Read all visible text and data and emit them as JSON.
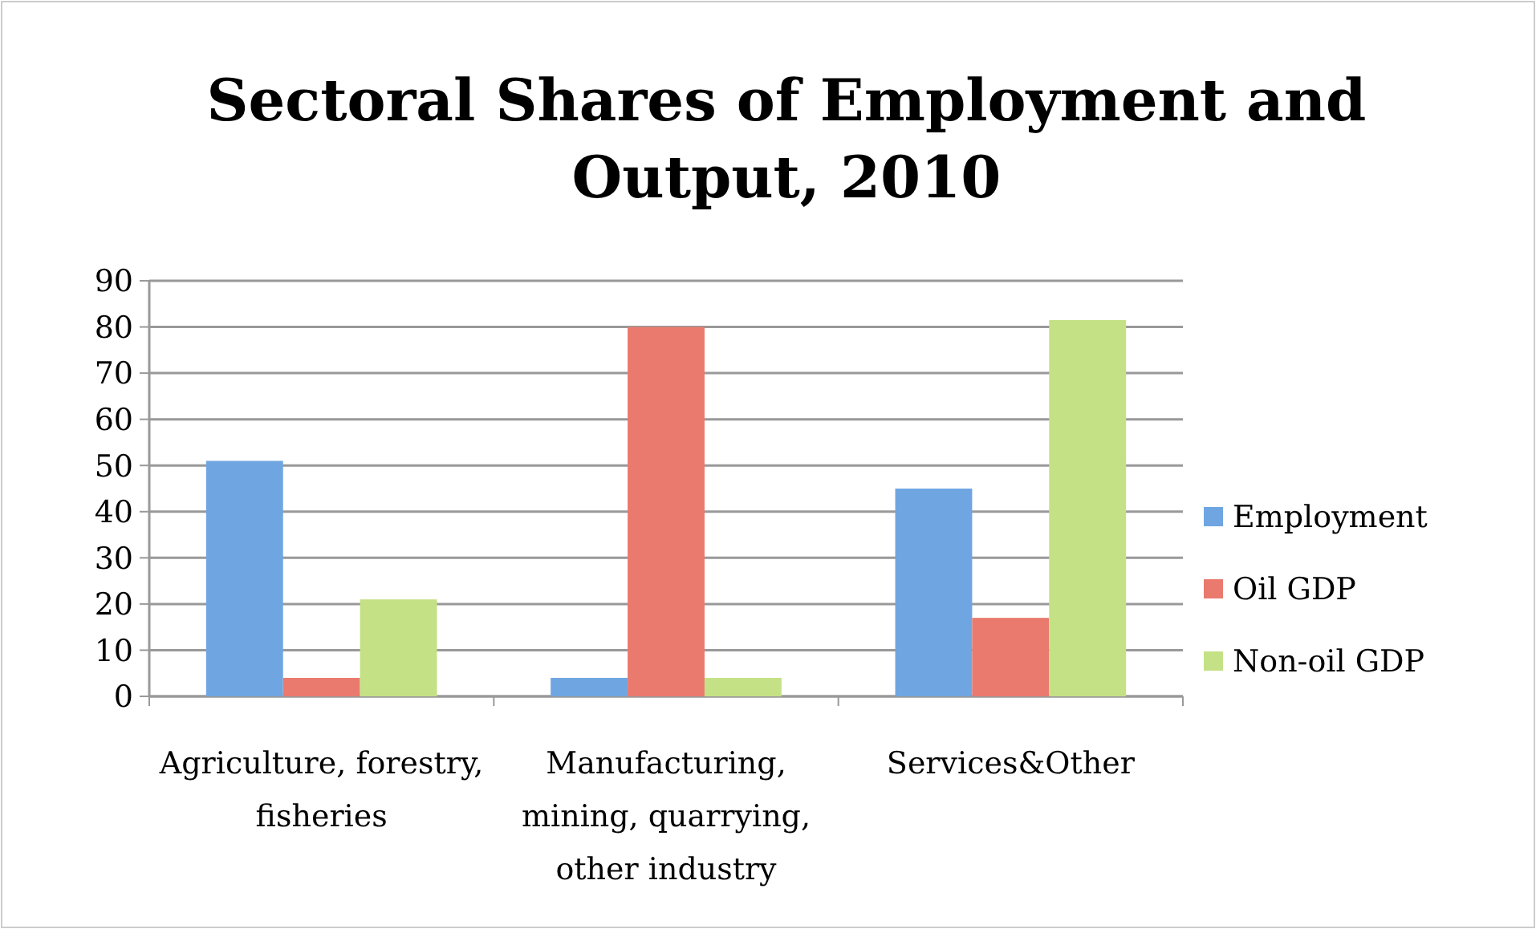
{
  "chart_data": {
    "type": "bar",
    "title": "Sectoral Shares of Employment and Output, 2010",
    "categories": [
      "Agriculture, forestry, fisheries",
      "Manufacturing, mining, quarrying, other industry",
      "Services&Other"
    ],
    "series": [
      {
        "name": "Employment",
        "color": "#6fa6e2",
        "values": [
          51,
          4,
          45
        ]
      },
      {
        "name": "Oil GDP",
        "color": "#ea7a6e",
        "values": [
          4,
          80,
          17
        ]
      },
      {
        "name": "Non-oil GDP",
        "color": "#c4e285",
        "values": [
          21,
          4,
          81.5
        ]
      }
    ],
    "ylim": [
      0,
      90
    ],
    "yticks": [
      0,
      10,
      20,
      30,
      40,
      50,
      60,
      70,
      80,
      90
    ],
    "grid": "y",
    "legend": "right"
  }
}
